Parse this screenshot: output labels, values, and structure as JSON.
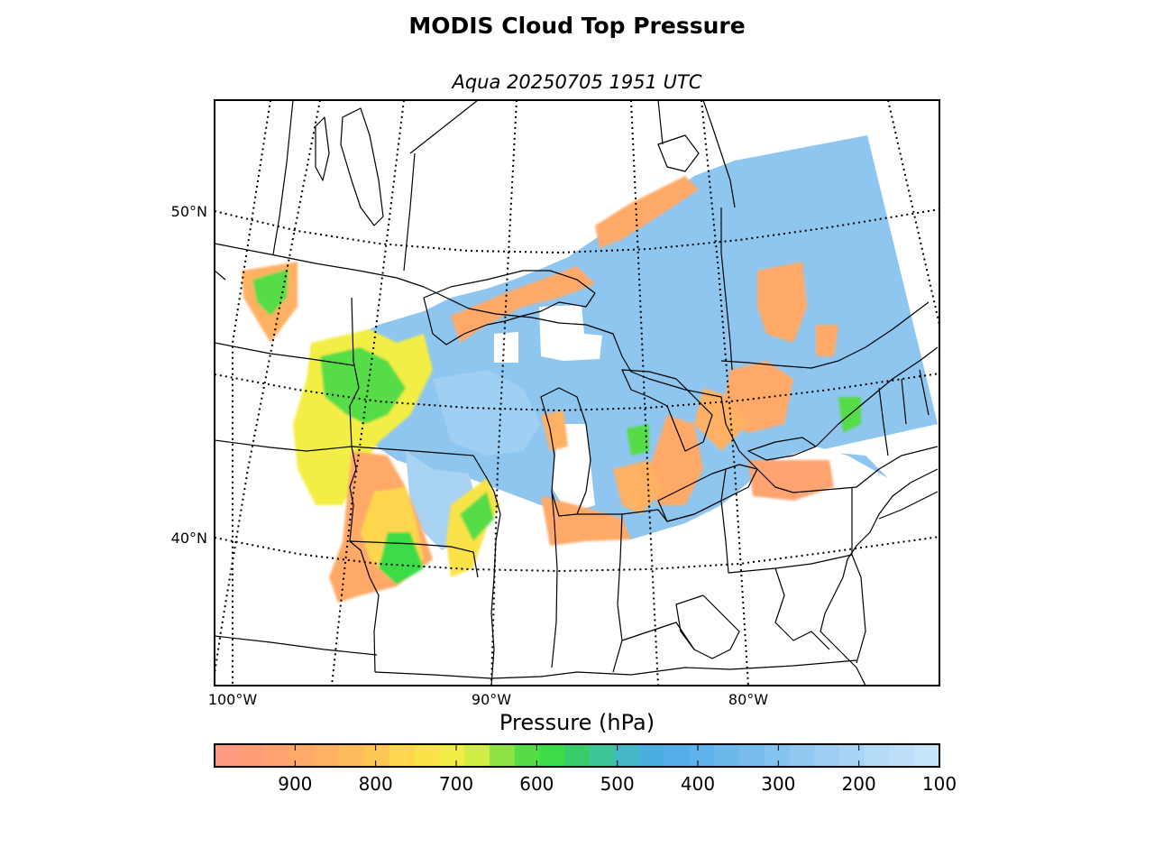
{
  "header": {
    "title": "MODIS Cloud Top Pressure",
    "subtitle": "Aqua 20250705 1951 UTC"
  },
  "map": {
    "meridians": [
      {
        "lon": -100,
        "label": "100°W"
      },
      {
        "lon": -90,
        "label": "90°W"
      },
      {
        "lon": -80,
        "label": "80°W"
      }
    ],
    "parallels": [
      {
        "lat": 50,
        "label": "50°N"
      },
      {
        "lat": 40,
        "label": "40°N"
      }
    ],
    "extra_gridlines": {
      "meridians_unlabeled": [
        -105,
        -95,
        -85,
        -75
      ],
      "parallels_unlabeled": [
        45
      ]
    }
  },
  "colorbar": {
    "label": "Pressure (hPa)",
    "min": 100,
    "max": 1000,
    "orientation": "high-pressure-left",
    "ticks": [
      {
        "value": 900,
        "label": "900"
      },
      {
        "value": 800,
        "label": "800"
      },
      {
        "value": 700,
        "label": "700"
      },
      {
        "value": 600,
        "label": "600"
      },
      {
        "value": 500,
        "label": "500"
      },
      {
        "value": 400,
        "label": "400"
      },
      {
        "value": 300,
        "label": "300"
      },
      {
        "value": 200,
        "label": "200"
      },
      {
        "value": 100,
        "label": "100"
      }
    ],
    "colors": [
      "#ff9b80",
      "#ff9d78",
      "#ffa370",
      "#ffa968",
      "#ffb163",
      "#ffbc5c",
      "#ffc855",
      "#fdd64e",
      "#f9e348",
      "#f3ee45",
      "#d0ec45",
      "#8fe245",
      "#56dc46",
      "#3bdc47",
      "#39cc6a",
      "#3ec59a",
      "#44b8c6",
      "#4aaee0",
      "#55aeea",
      "#60b2ec",
      "#6cb8ed",
      "#78bcee",
      "#84c3f0",
      "#90c8f2",
      "#9ccff3",
      "#a8d5f5",
      "#b4dcf7",
      "#bedff9",
      "#c6e5fb"
    ]
  }
}
